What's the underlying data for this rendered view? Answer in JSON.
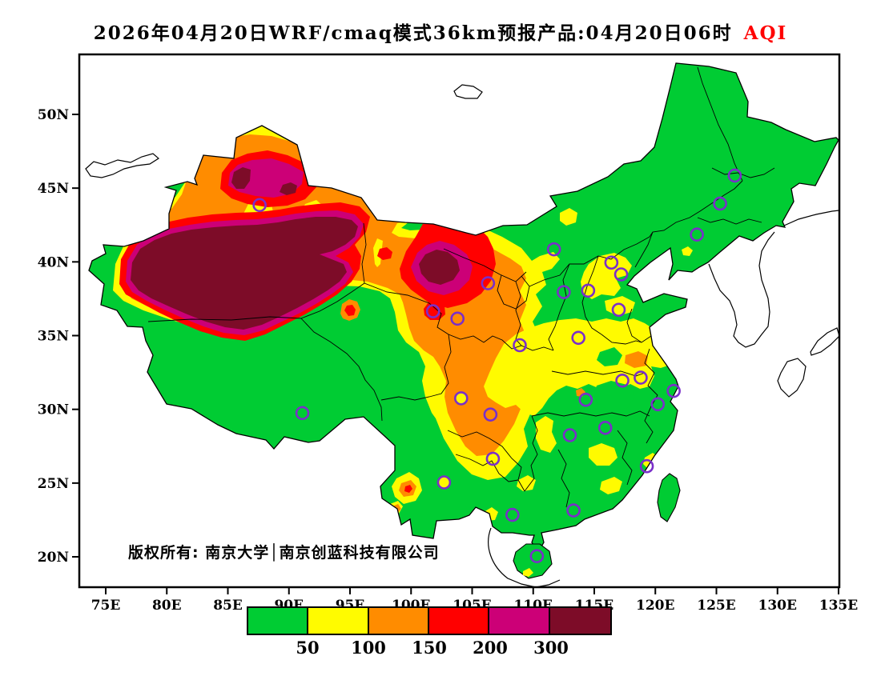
{
  "title": {
    "text": "2026年04月20日WRF/cmaq模式36km预报产品:04月20日06时",
    "tag": "AQI"
  },
  "map": {
    "copyright": "版权所有: 南京大学│南京创蓝科技有限公司",
    "x_ticks": [
      "75E",
      "80E",
      "85E",
      "90E",
      "95E",
      "100E",
      "105E",
      "110E",
      "115E",
      "120E",
      "125E",
      "130E",
      "135E"
    ],
    "y_ticks": [
      "50N",
      "45N",
      "40N",
      "35N",
      "30N",
      "25N",
      "20N"
    ]
  },
  "legend": {
    "labels": [
      "50",
      "100",
      "150",
      "200",
      "300"
    ],
    "colors": [
      "#00CC33",
      "#FFFB00",
      "#FF8C00",
      "#FF0000",
      "#CC0077",
      "#7D0C28"
    ]
  },
  "stations": [
    {
      "lon": 87.6,
      "lat": 43.8
    },
    {
      "lon": 126.5,
      "lat": 45.8
    },
    {
      "lon": 125.3,
      "lat": 43.9
    },
    {
      "lon": 123.4,
      "lat": 41.8
    },
    {
      "lon": 111.7,
      "lat": 40.8
    },
    {
      "lon": 116.4,
      "lat": 39.9
    },
    {
      "lon": 117.2,
      "lat": 39.1
    },
    {
      "lon": 114.5,
      "lat": 38.0
    },
    {
      "lon": 112.5,
      "lat": 37.9
    },
    {
      "lon": 117.0,
      "lat": 36.7
    },
    {
      "lon": 106.3,
      "lat": 38.5
    },
    {
      "lon": 101.8,
      "lat": 36.6
    },
    {
      "lon": 103.8,
      "lat": 36.1
    },
    {
      "lon": 108.9,
      "lat": 34.3
    },
    {
      "lon": 113.7,
      "lat": 34.8
    },
    {
      "lon": 117.3,
      "lat": 31.9
    },
    {
      "lon": 118.8,
      "lat": 32.1
    },
    {
      "lon": 121.5,
      "lat": 31.2
    },
    {
      "lon": 120.2,
      "lat": 30.3
    },
    {
      "lon": 114.3,
      "lat": 30.6
    },
    {
      "lon": 113.0,
      "lat": 28.2
    },
    {
      "lon": 115.9,
      "lat": 28.7
    },
    {
      "lon": 119.3,
      "lat": 26.1
    },
    {
      "lon": 113.3,
      "lat": 23.1
    },
    {
      "lon": 108.3,
      "lat": 22.8
    },
    {
      "lon": 106.7,
      "lat": 26.6
    },
    {
      "lon": 104.1,
      "lat": 30.7,
      "fill": "#FFFB00"
    },
    {
      "lon": 106.5,
      "lat": 29.6
    },
    {
      "lon": 102.7,
      "lat": 25.0,
      "fill": "#FFFB00"
    },
    {
      "lon": 91.1,
      "lat": 29.7
    },
    {
      "lon": 110.3,
      "lat": 20.0
    }
  ],
  "chart_data": {
    "type": "contour-map",
    "variable": "AQI",
    "model": "WRF/cmaq",
    "resolution": "36km",
    "forecast_init": "2026年04月20日",
    "valid_time": "04月20日06时",
    "lon_range": [
      75,
      135
    ],
    "lat_range": [
      20,
      50
    ],
    "levels": [
      50,
      100,
      150,
      200,
      300
    ],
    "bins": [
      {
        "range": "0-50",
        "color": "#00CC33"
      },
      {
        "range": "50-100",
        "color": "#FFFB00"
      },
      {
        "range": "100-150",
        "color": "#FF8C00"
      },
      {
        "range": "150-200",
        "color": "#FF0000"
      },
      {
        "range": "200-300",
        "color": "#CC0077"
      },
      {
        "range": ">300",
        "color": "#7D0C28"
      }
    ],
    "hotspots": [
      {
        "region": "塔里木盆地(南疆)",
        "aqi": ">300"
      },
      {
        "region": "河西走廊-阿拉善一带",
        "aqi": ">300"
      },
      {
        "region": "准噶尔盆地南缘",
        "aqi": "200-300"
      },
      {
        "region": "甘肃中部-川西一线",
        "aqi": "100-150"
      },
      {
        "region": "华北-江淮部分地区",
        "aqi": "50-100"
      },
      {
        "region": "东北/华南/青藏高原大部",
        "aqi": "0-50"
      }
    ]
  }
}
